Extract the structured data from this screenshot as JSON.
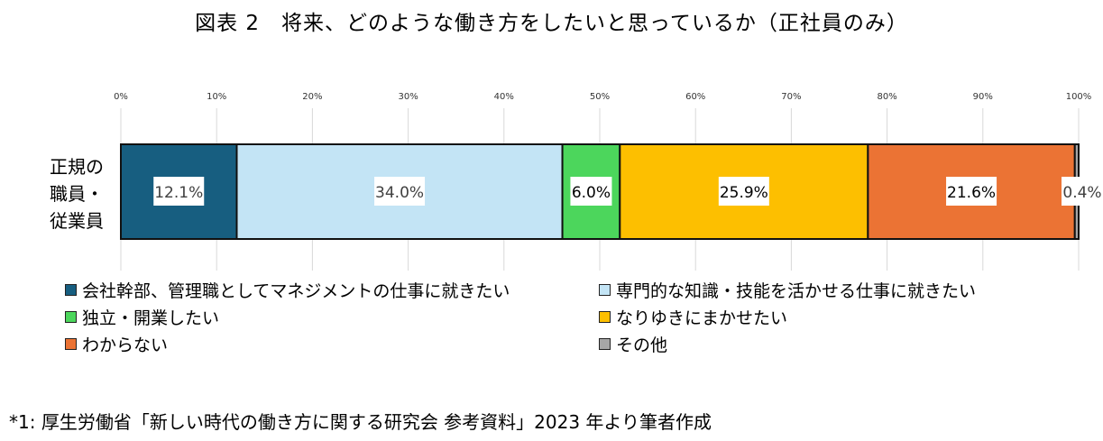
{
  "chart_data": {
    "type": "bar",
    "orientation": "horizontal",
    "stacked": true,
    "title": "図表 2　将来、どのような働き方をしたいと思っているか（正社員のみ）",
    "categories": [
      "正規の職員・従業員"
    ],
    "category_label_lines": [
      "正規の",
      "職員・",
      "従業員"
    ],
    "xlim": [
      0,
      100
    ],
    "x_ticks": [
      "0%",
      "10%",
      "20%",
      "30%",
      "40%",
      "50%",
      "60%",
      "70%",
      "80%",
      "90%",
      "100%"
    ],
    "grid": true,
    "legend_position": "bottom",
    "series": [
      {
        "name": "会社幹部、管理職としてマネジメントの仕事に就きたい",
        "values": [
          12.1
        ],
        "label": "12.1%",
        "color": "#175e80"
      },
      {
        "name": "専門的な知識・技能を活かせる仕事に就きたい",
        "values": [
          34.0
        ],
        "label": "34.0%",
        "color": "#c3e4f5"
      },
      {
        "name": "独立・開業したい",
        "values": [
          6.0
        ],
        "label": "6.0%",
        "color": "#4cd65c"
      },
      {
        "name": "なりゆきにまかせたい",
        "values": [
          25.9
        ],
        "label": "25.9%",
        "color": "#fdbf00"
      },
      {
        "name": "わからない",
        "values": [
          21.6
        ],
        "label": "21.6%",
        "color": "#eb7334"
      },
      {
        "name": "その他",
        "values": [
          0.4
        ],
        "label": "0.4%",
        "color": "#a6a6a6"
      }
    ]
  },
  "footnote": "*1:  厚生労働省「新しい時代の働き方に関する研究会  参考資料」2023 年より筆者作成"
}
